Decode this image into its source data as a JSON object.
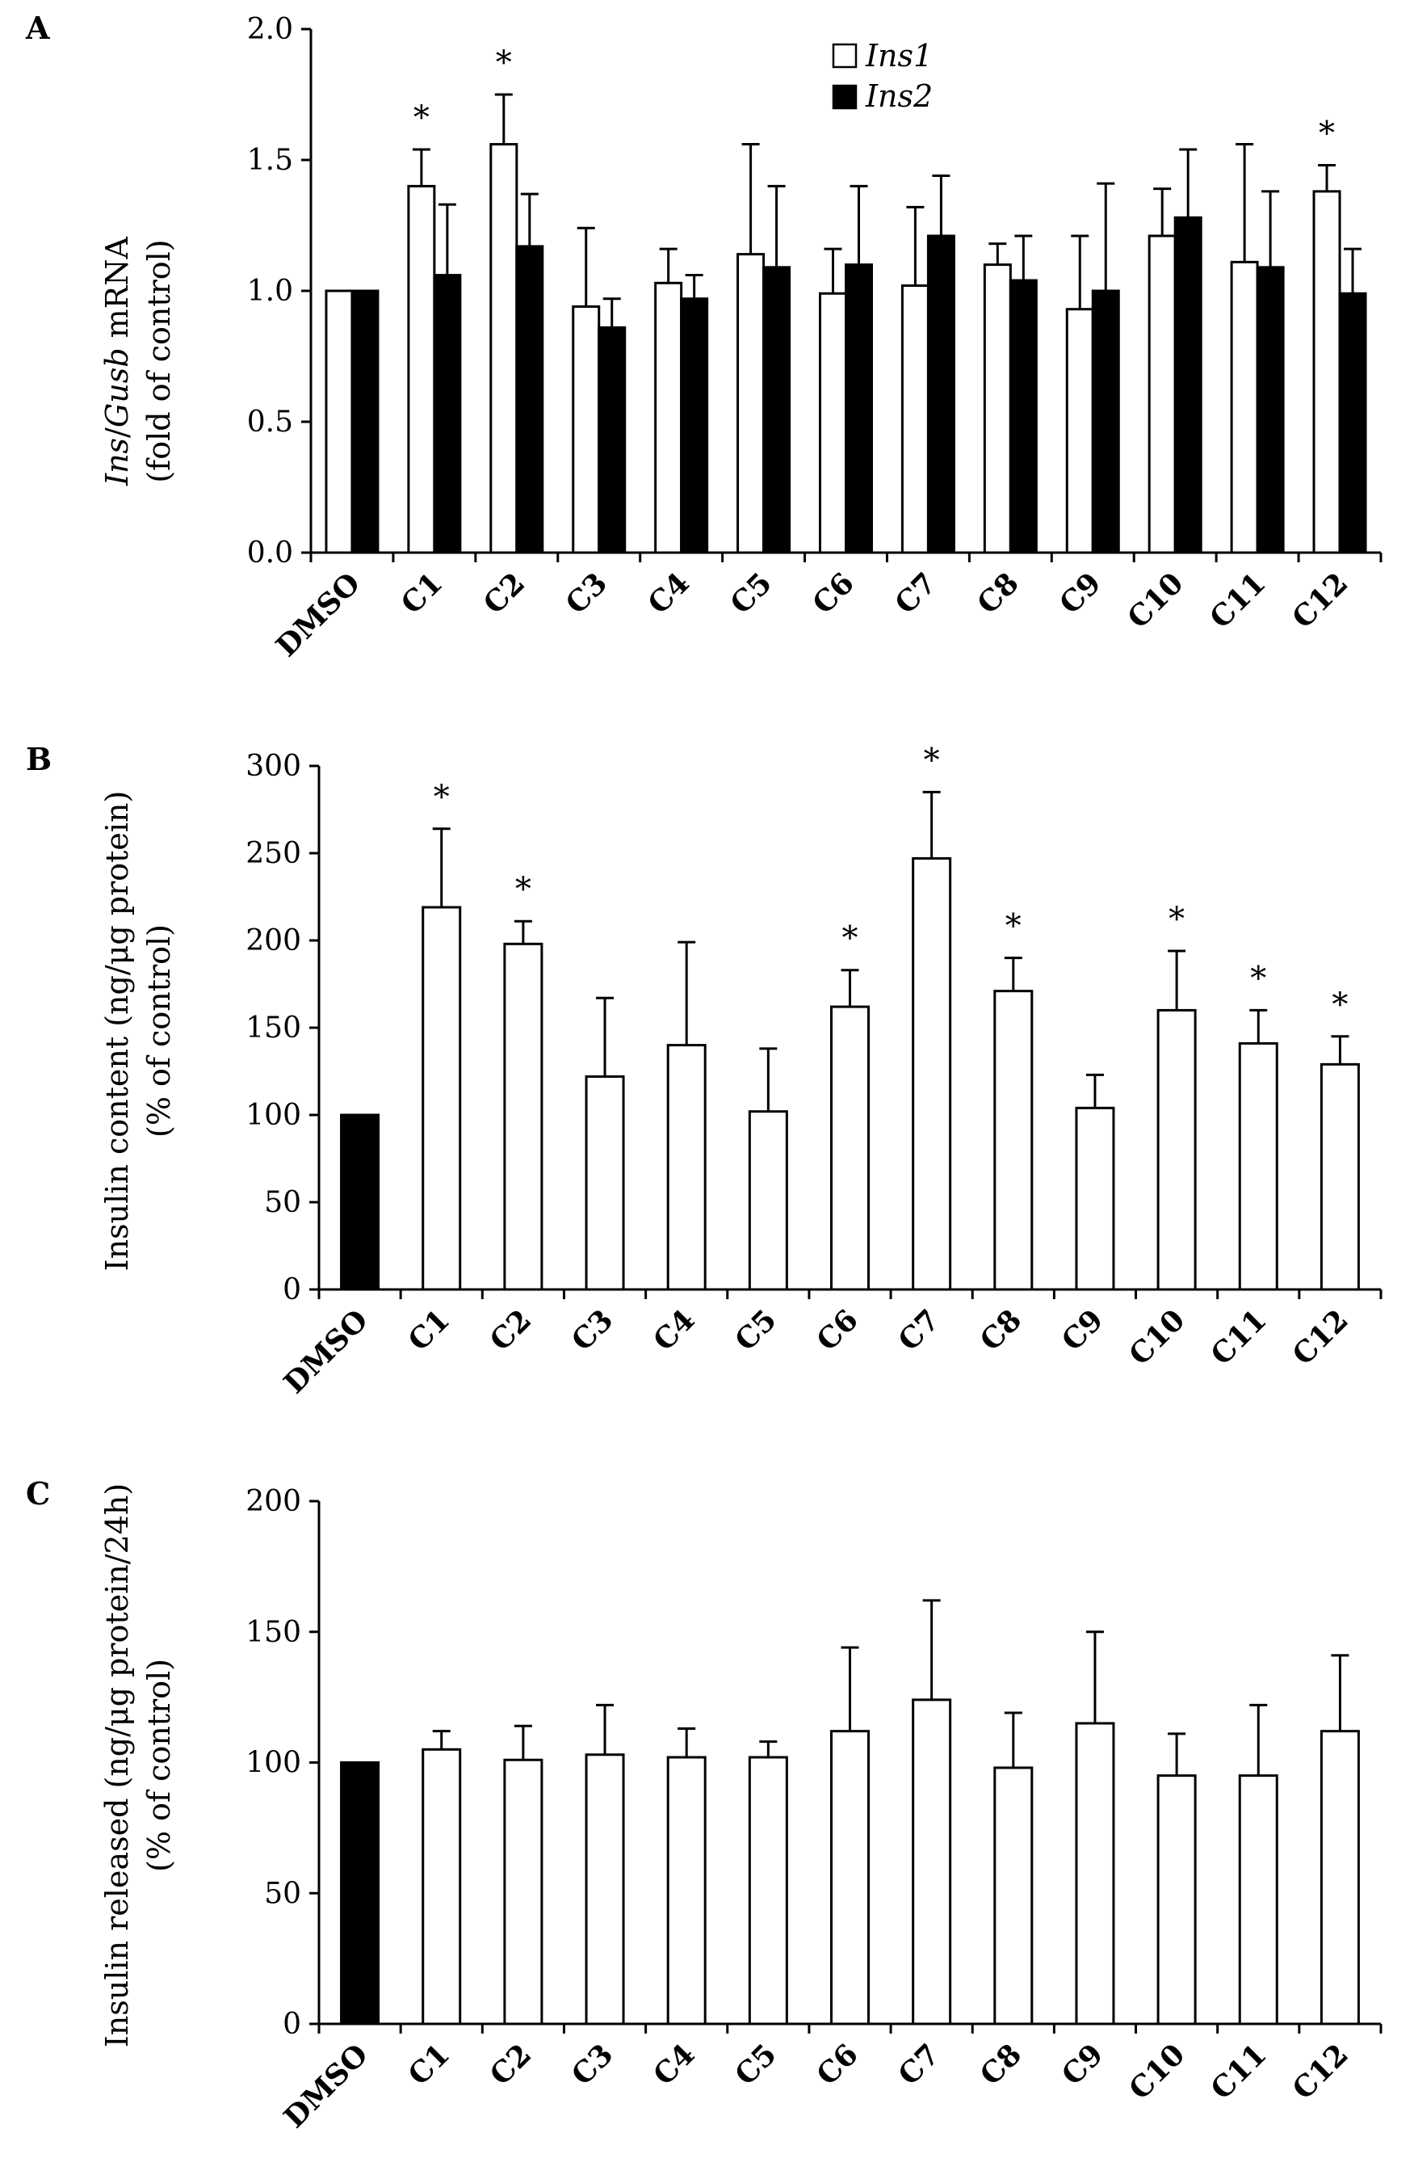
{
  "figure": {
    "legend": {
      "series": [
        "Ins1",
        "Ins2"
      ]
    }
  },
  "chart_data": [
    {
      "panel": "A",
      "type": "bar",
      "ylabel_italic_1": "Ins",
      "ylabel_sep": "/",
      "ylabel_italic_2": "Gusb",
      "ylabel_rest": " mRNA",
      "ylabel_line2": "(fold of control)",
      "ylim": [
        0,
        2.0
      ],
      "yticks": [
        0.0,
        0.5,
        1.0,
        1.5,
        2.0
      ],
      "ytick_labels": [
        "0.0",
        "0.5",
        "1.0",
        "1.5",
        "2.0"
      ],
      "categories": [
        "DMSO",
        "C1",
        "C2",
        "C3",
        "C4",
        "C5",
        "C6",
        "C7",
        "C8",
        "C9",
        "C10",
        "C11",
        "C12"
      ],
      "series": [
        {
          "name": "Ins1",
          "fill": "#ffffff",
          "values": [
            1.0,
            1.4,
            1.56,
            0.94,
            1.03,
            1.14,
            0.99,
            1.02,
            1.1,
            0.93,
            1.21,
            1.11,
            1.38
          ],
          "errors": [
            0.0,
            0.14,
            0.19,
            0.3,
            0.13,
            0.42,
            0.17,
            0.3,
            0.08,
            0.28,
            0.18,
            0.45,
            0.1
          ]
        },
        {
          "name": "Ins2",
          "fill": "#000000",
          "values": [
            1.0,
            1.06,
            1.17,
            0.86,
            0.97,
            1.09,
            1.1,
            1.21,
            1.04,
            1.0,
            1.28,
            1.09,
            0.99
          ],
          "errors": [
            0.0,
            0.27,
            0.2,
            0.11,
            0.09,
            0.31,
            0.3,
            0.23,
            0.17,
            0.41,
            0.26,
            0.29,
            0.17
          ]
        }
      ],
      "significance_marks": [
        {
          "category": "C1",
          "label": "*"
        },
        {
          "category": "C2",
          "label": "*"
        },
        {
          "category": "C12",
          "label": "*"
        }
      ]
    },
    {
      "panel": "B",
      "type": "bar",
      "ylabel_line1": "Insulin content (ng/μg protein)",
      "ylabel_line2": "(% of control)",
      "ylim": [
        0,
        300
      ],
      "yticks": [
        0,
        50,
        100,
        150,
        200,
        250,
        300
      ],
      "ytick_labels": [
        "0",
        "50",
        "100",
        "150",
        "200",
        "250",
        "300"
      ],
      "categories": [
        "DMSO",
        "C1",
        "C2",
        "C3",
        "C4",
        "C5",
        "C6",
        "C7",
        "C8",
        "C9",
        "C10",
        "C11",
        "C12"
      ],
      "values": [
        100,
        219,
        198,
        122,
        140,
        102,
        162,
        247,
        171,
        104,
        160,
        141,
        129
      ],
      "errors": [
        0,
        45,
        13,
        45,
        59,
        36,
        21,
        38,
        19,
        19,
        34,
        19,
        16
      ],
      "significance_marks": [
        {
          "category": "C1",
          "label": "*"
        },
        {
          "category": "C2",
          "label": "*"
        },
        {
          "category": "C6",
          "label": "*"
        },
        {
          "category": "C7",
          "label": "*"
        },
        {
          "category": "C8",
          "label": "*"
        },
        {
          "category": "C10",
          "label": "*"
        },
        {
          "category": "C11",
          "label": "*"
        },
        {
          "category": "C12",
          "label": "*"
        }
      ]
    },
    {
      "panel": "C",
      "type": "bar",
      "ylabel_line1": "Insulin released (ng/μg protein/24h)",
      "ylabel_line2": "(% of control)",
      "ylim": [
        0,
        200
      ],
      "yticks": [
        0,
        50,
        100,
        150,
        200
      ],
      "ytick_labels": [
        "0",
        "50",
        "100",
        "150",
        "200"
      ],
      "categories": [
        "DMSO",
        "C1",
        "C2",
        "C3",
        "C4",
        "C5",
        "C6",
        "C7",
        "C8",
        "C9",
        "C10",
        "C11",
        "C12"
      ],
      "values": [
        100,
        105,
        101,
        103,
        102,
        102,
        112,
        124,
        98,
        115,
        95,
        95,
        112
      ],
      "errors": [
        0,
        7,
        13,
        19,
        11,
        6,
        32,
        38,
        21,
        35,
        16,
        27,
        29
      ],
      "significance_marks": []
    }
  ],
  "colors": {
    "axis": "#000000",
    "filled_bar": "#000000",
    "open_bar": "#ffffff"
  }
}
